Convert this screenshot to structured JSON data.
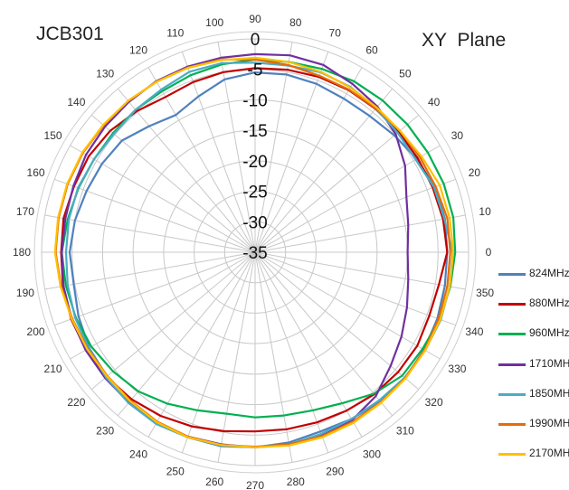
{
  "titles": {
    "left": "JCB301",
    "right": "XY Plane"
  },
  "chart_data": {
    "type": "radar",
    "angle_unit": "degrees",
    "angle_ticks": [
      0,
      10,
      20,
      30,
      40,
      50,
      60,
      70,
      80,
      90,
      100,
      110,
      120,
      130,
      140,
      150,
      160,
      170,
      180,
      190,
      200,
      210,
      220,
      230,
      240,
      250,
      260,
      270,
      280,
      290,
      300,
      310,
      320,
      330,
      340,
      350
    ],
    "radial_ticks": [
      0,
      -5,
      -10,
      -15,
      -20,
      -25,
      -30,
      -35
    ],
    "rlim": [
      -35,
      0
    ],
    "grid": true,
    "legend_position": "right",
    "series": [
      {
        "name": "824MHz",
        "color": "#4F81BD",
        "angles": [
          0,
          10,
          20,
          30,
          40,
          50,
          60,
          70,
          80,
          90,
          100,
          110,
          120,
          130,
          140,
          150,
          160,
          170,
          180,
          190,
          200,
          210,
          220,
          230,
          240,
          250,
          260,
          270,
          280,
          290,
          300,
          310,
          320,
          330,
          340,
          350
        ],
        "values": [
          -3.5,
          -3.4,
          -3.6,
          -4.4,
          -5.2,
          -5.8,
          -5.9,
          -5.6,
          -5.4,
          -5.5,
          -6.2,
          -7.8,
          -9.0,
          -8.0,
          -6.5,
          -6.0,
          -5.6,
          -5.0,
          -4.6,
          -4.8,
          -4.2,
          -3.6,
          -3.3,
          -3.0,
          -2.8,
          -2.7,
          -2.7,
          -3.0,
          -3.3,
          -3.7,
          -3.4,
          -3.0,
          -2.9,
          -3.0,
          -3.2,
          -3.4
        ]
      },
      {
        "name": "880MHz",
        "color": "#C00000",
        "angles": [
          0,
          10,
          20,
          30,
          40,
          50,
          60,
          70,
          80,
          90,
          100,
          110,
          120,
          130,
          140,
          150,
          160,
          170,
          180,
          190,
          200,
          210,
          220,
          230,
          240,
          250,
          260,
          270,
          280,
          290,
          300,
          310,
          320,
          330,
          340,
          350
        ],
        "values": [
          -3.5,
          -3.7,
          -4.0,
          -4.2,
          -4.3,
          -4.3,
          -4.3,
          -4.4,
          -4.6,
          -4.8,
          -5.0,
          -5.3,
          -5.6,
          -4.8,
          -4.0,
          -3.5,
          -3.4,
          -3.1,
          -3.2,
          -3.0,
          -2.9,
          -3.0,
          -3.2,
          -3.5,
          -4.0,
          -4.6,
          -5.2,
          -5.6,
          -5.5,
          -5.3,
          -5.0,
          -4.6,
          -4.4,
          -4.3,
          -4.6,
          -4.4
        ]
      },
      {
        "name": "960MHz",
        "color": "#00B050",
        "angles": [
          0,
          10,
          20,
          30,
          40,
          50,
          60,
          70,
          80,
          90,
          100,
          110,
          120,
          130,
          140,
          150,
          160,
          170,
          180,
          190,
          200,
          210,
          220,
          230,
          240,
          250,
          260,
          270,
          280,
          290,
          300,
          310,
          320,
          330,
          340,
          350
        ],
        "values": [
          -2.2,
          -2.0,
          -2.1,
          -2.3,
          -2.4,
          -2.5,
          -2.6,
          -3.0,
          -3.3,
          -3.4,
          -3.7,
          -4.1,
          -4.5,
          -4.5,
          -4.6,
          -4.5,
          -4.2,
          -3.8,
          -3.3,
          -3.5,
          -3.7,
          -4.0,
          -4.6,
          -5.2,
          -6.3,
          -7.4,
          -8.1,
          -7.9,
          -7.8,
          -7.4,
          -6.4,
          -4.7,
          -3.5,
          -3.3,
          -2.8,
          -2.5
        ]
      },
      {
        "name": "1710MHz",
        "color": "#7030A0",
        "angles": [
          0,
          10,
          20,
          30,
          40,
          50,
          60,
          70,
          80,
          90,
          100,
          110,
          120,
          130,
          140,
          150,
          160,
          170,
          180,
          190,
          200,
          210,
          220,
          230,
          240,
          250,
          260,
          270,
          280,
          290,
          300,
          310,
          320,
          330,
          340,
          350
        ],
        "values": [
          -10.0,
          -9.5,
          -8.6,
          -6.6,
          -4.9,
          -3.8,
          -3.1,
          -2.3,
          -2.2,
          -2.5,
          -2.6,
          -2.6,
          -2.6,
          -2.8,
          -2.9,
          -3.0,
          -3.3,
          -3.4,
          -3.3,
          -3.1,
          -3.0,
          -2.9,
          -2.9,
          -2.8,
          -2.6,
          -2.8,
          -3.0,
          -3.0,
          -2.9,
          -3.0,
          -3.2,
          -4.2,
          -6.0,
          -7.3,
          -8.5,
          -9.5
        ]
      },
      {
        "name": "1850MHz",
        "color": "#4BACC6",
        "angles": [
          0,
          10,
          20,
          30,
          40,
          50,
          60,
          70,
          80,
          90,
          100,
          110,
          120,
          130,
          140,
          150,
          160,
          170,
          180,
          190,
          200,
          210,
          220,
          230,
          240,
          250,
          260,
          270,
          280,
          290,
          300,
          310,
          320,
          330,
          340,
          350
        ],
        "values": [
          -2.6,
          -3.5,
          -3.8,
          -4.6,
          -4.5,
          -4.2,
          -3.7,
          -3.6,
          -3.9,
          -3.9,
          -3.5,
          -3.5,
          -4.2,
          -4.5,
          -4.8,
          -4.5,
          -4.1,
          -4.0,
          -4.0,
          -3.8,
          -3.6,
          -3.5,
          -3.1,
          -2.7,
          -2.5,
          -2.7,
          -2.8,
          -3.0,
          -3.0,
          -3.3,
          -3.4,
          -3.3,
          -3.0,
          -2.8,
          -2.6,
          -2.6
        ]
      },
      {
        "name": "1990MHz",
        "color": "#E46C0A",
        "angles": [
          0,
          10,
          20,
          30,
          40,
          50,
          60,
          70,
          80,
          90,
          100,
          110,
          120,
          130,
          140,
          150,
          160,
          170,
          180,
          190,
          200,
          210,
          220,
          230,
          240,
          250,
          260,
          270,
          280,
          290,
          300,
          310,
          320,
          330,
          340,
          350
        ],
        "values": [
          -3.0,
          -3.0,
          -3.5,
          -3.8,
          -4.0,
          -4.2,
          -4.2,
          -4.2,
          -3.8,
          -3.4,
          -2.9,
          -2.8,
          -2.7,
          -2.6,
          -2.6,
          -2.4,
          -2.3,
          -2.3,
          -2.3,
          -2.7,
          -3.1,
          -3.3,
          -3.4,
          -3.2,
          -2.9,
          -2.8,
          -2.9,
          -3.1,
          -3.0,
          -2.9,
          -2.9,
          -2.9,
          -2.9,
          -2.9,
          -3.0,
          -3.0
        ]
      },
      {
        "name": "2170MHz",
        "color": "#FFC000",
        "angles": [
          0,
          10,
          20,
          30,
          40,
          50,
          60,
          70,
          80,
          90,
          100,
          110,
          120,
          130,
          140,
          150,
          160,
          170,
          180,
          190,
          200,
          210,
          220,
          230,
          240,
          250,
          260,
          270,
          280,
          290,
          300,
          310,
          320,
          330,
          340,
          350
        ],
        "values": [
          -2.5,
          -2.6,
          -2.8,
          -3.5,
          -4.0,
          -4.0,
          -3.8,
          -3.5,
          -3.3,
          -3.1,
          -3.0,
          -2.8,
          -2.7,
          -2.6,
          -2.5,
          -2.3,
          -2.2,
          -2.2,
          -2.2,
          -2.6,
          -3.0,
          -3.2,
          -3.3,
          -3.1,
          -2.8,
          -2.7,
          -2.9,
          -3.0,
          -2.8,
          -2.7,
          -2.7,
          -2.8,
          -2.8,
          -2.8,
          -2.7,
          -2.6
        ]
      }
    ]
  }
}
